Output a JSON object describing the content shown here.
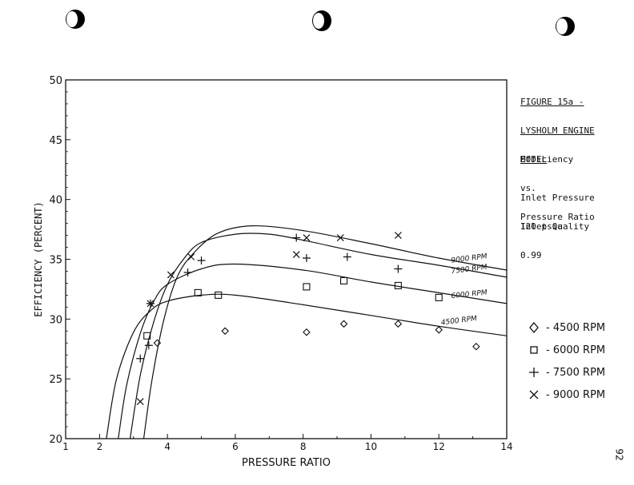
{
  "caption": {
    "figure_title_line1": "FIGURE 15a -",
    "figure_title_line2": "LYSHOLM ENGINE",
    "figure_title_line3": "MODEL",
    "desc_line1": "Efficiency",
    "desc_line2": "vs.",
    "desc_line3": "Pressure Ratio",
    "inlet_pressure_line1": "Inlet Pressure",
    "inlet_pressure_line2": "120 psia",
    "inlet_quality_line1": "Inlet Quality",
    "inlet_quality_line2": "0.99"
  },
  "legend": [
    {
      "symbol": "diamond",
      "label": "- 4500 RPM"
    },
    {
      "symbol": "square",
      "label": "- 6000 RPM"
    },
    {
      "symbol": "plus",
      "label": "- 7500 RPM"
    },
    {
      "symbol": "cross",
      "label": "- 9000 RPM"
    }
  ],
  "page_number": "92",
  "chart_data": {
    "type": "scatter",
    "xlabel": "PRESSURE RATIO",
    "ylabel": "EFFICIENCY (PERCENT)",
    "xlim": [
      1,
      14
    ],
    "ylim": [
      20,
      50
    ],
    "xticks": [
      1,
      2,
      4,
      6,
      8,
      10,
      12,
      14
    ],
    "yticks": [
      20,
      25,
      30,
      35,
      40,
      45,
      50
    ],
    "grid": false,
    "legend_position": "right",
    "series": [
      {
        "name": "4500 RPM",
        "marker": "diamond",
        "points": [
          [
            3.7,
            28.0
          ],
          [
            5.7,
            29.0
          ],
          [
            8.1,
            28.9
          ],
          [
            9.2,
            29.6
          ],
          [
            10.8,
            29.6
          ],
          [
            12.0,
            29.1
          ],
          [
            13.1,
            27.7
          ]
        ]
      },
      {
        "name": "6000 RPM",
        "marker": "square",
        "points": [
          [
            3.4,
            28.6
          ],
          [
            4.9,
            32.2
          ],
          [
            5.5,
            32.0
          ],
          [
            8.1,
            32.7
          ],
          [
            9.2,
            33.2
          ],
          [
            10.8,
            32.8
          ],
          [
            12.0,
            31.8
          ]
        ]
      },
      {
        "name": "7500 RPM",
        "marker": "plus",
        "points": [
          [
            3.2,
            26.7
          ],
          [
            3.45,
            27.8
          ],
          [
            3.5,
            31.3
          ],
          [
            4.6,
            33.9
          ],
          [
            5.0,
            34.9
          ],
          [
            7.8,
            36.8
          ],
          [
            8.1,
            35.1
          ],
          [
            9.3,
            35.2
          ],
          [
            10.8,
            34.2
          ]
        ]
      },
      {
        "name": "9000 RPM",
        "marker": "cross",
        "points": [
          [
            3.2,
            23.1
          ],
          [
            3.5,
            31.3
          ],
          [
            4.1,
            33.7
          ],
          [
            4.7,
            35.2
          ],
          [
            7.8,
            35.4
          ],
          [
            8.1,
            36.8
          ],
          [
            9.1,
            36.8
          ],
          [
            10.8,
            37.0
          ]
        ]
      }
    ],
    "curves": [
      {
        "label": "4500 RPM",
        "points": [
          [
            2.2,
            20.0
          ],
          [
            2.5,
            25.0
          ],
          [
            3.0,
            28.9
          ],
          [
            3.5,
            30.7
          ],
          [
            4.0,
            31.5
          ],
          [
            5.0,
            32.0
          ],
          [
            6.0,
            32.0
          ],
          [
            8.0,
            31.2
          ],
          [
            10.0,
            30.3
          ],
          [
            12.0,
            29.4
          ],
          [
            14.0,
            28.6
          ]
        ]
      },
      {
        "label": "6000 RPM",
        "points": [
          [
            2.55,
            20.0
          ],
          [
            2.8,
            24.5
          ],
          [
            3.2,
            28.8
          ],
          [
            3.6,
            31.5
          ],
          [
            4.0,
            32.9
          ],
          [
            5.0,
            34.2
          ],
          [
            6.0,
            34.6
          ],
          [
            8.0,
            34.1
          ],
          [
            10.0,
            33.1
          ],
          [
            12.0,
            32.2
          ],
          [
            14.0,
            31.3
          ]
        ]
      },
      {
        "label": "7500 RPM",
        "points": [
          [
            2.9,
            20.0
          ],
          [
            3.2,
            25.3
          ],
          [
            3.6,
            29.8
          ],
          [
            4.0,
            32.9
          ],
          [
            4.5,
            35.1
          ],
          [
            5.0,
            36.4
          ],
          [
            6.0,
            37.1
          ],
          [
            7.0,
            37.1
          ],
          [
            8.0,
            36.6
          ],
          [
            10.0,
            35.4
          ],
          [
            12.0,
            34.5
          ],
          [
            14.0,
            33.5
          ]
        ]
      },
      {
        "label": "9000 RPM",
        "points": [
          [
            3.3,
            20.0
          ],
          [
            3.55,
            25.0
          ],
          [
            3.9,
            30.0
          ],
          [
            4.3,
            33.6
          ],
          [
            4.8,
            35.6
          ],
          [
            5.5,
            37.2
          ],
          [
            6.5,
            37.8
          ],
          [
            8.0,
            37.4
          ],
          [
            10.0,
            36.3
          ],
          [
            12.0,
            35.1
          ],
          [
            14.0,
            34.1
          ]
        ]
      }
    ],
    "curve_labels": [
      "9000 RPM",
      "7500 RPM",
      "6000 RPM",
      "4500 RPM"
    ]
  }
}
